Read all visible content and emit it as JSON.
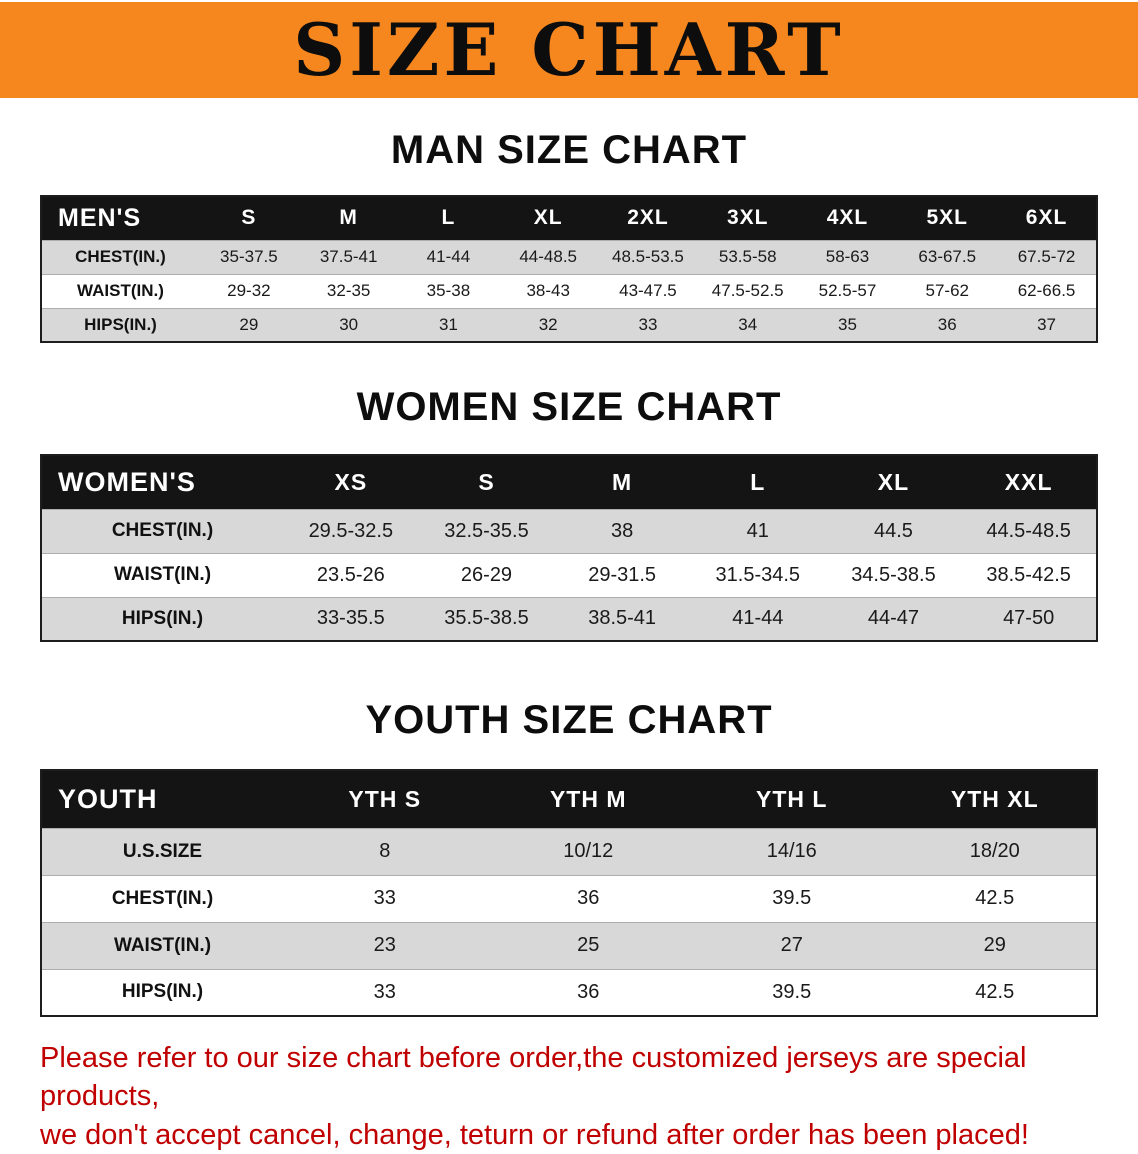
{
  "banner": {
    "title": "SIZE CHART"
  },
  "headings": {
    "men": "MAN SIZE CHART",
    "women": "WOMEN SIZE CHART",
    "youth": "YOUTH SIZE CHART"
  },
  "tables": {
    "men": {
      "label": "MEN'S",
      "columns": [
        "S",
        "M",
        "L",
        "XL",
        "2XL",
        "3XL",
        "4XL",
        "5XL",
        "6XL"
      ],
      "rows": [
        {
          "label": "CHEST(IN.)",
          "values": [
            "35-37.5",
            "37.5-41",
            "41-44",
            "44-48.5",
            "48.5-53.5",
            "53.5-58",
            "58-63",
            "63-67.5",
            "67.5-72"
          ]
        },
        {
          "label": "WAIST(IN.)",
          "values": [
            "29-32",
            "32-35",
            "35-38",
            "38-43",
            "43-47.5",
            "47.5-52.5",
            "52.5-57",
            "57-62",
            "62-66.5"
          ]
        },
        {
          "label": "HIPS(IN.)",
          "values": [
            "29",
            "30",
            "31",
            "32",
            "33",
            "34",
            "35",
            "36",
            "37"
          ]
        }
      ]
    },
    "women": {
      "label": "WOMEN'S",
      "columns": [
        "XS",
        "S",
        "M",
        "L",
        "XL",
        "XXL"
      ],
      "rows": [
        {
          "label": "CHEST(IN.)",
          "values": [
            "29.5-32.5",
            "32.5-35.5",
            "38",
            "41",
            "44.5",
            "44.5-48.5"
          ]
        },
        {
          "label": "WAIST(IN.)",
          "values": [
            "23.5-26",
            "26-29",
            "29-31.5",
            "31.5-34.5",
            "34.5-38.5",
            "38.5-42.5"
          ]
        },
        {
          "label": "HIPS(IN.)",
          "values": [
            "33-35.5",
            "35.5-38.5",
            "38.5-41",
            "41-44",
            "44-47",
            "47-50"
          ]
        }
      ]
    },
    "youth": {
      "label": "YOUTH",
      "columns": [
        "YTH S",
        "YTH M",
        "YTH L",
        "YTH XL"
      ],
      "rows": [
        {
          "label": "U.S.SIZE",
          "values": [
            "8",
            "10/12",
            "14/16",
            "18/20"
          ]
        },
        {
          "label": "CHEST(IN.)",
          "values": [
            "33",
            "36",
            "39.5",
            "42.5"
          ]
        },
        {
          "label": "WAIST(IN.)",
          "values": [
            "23",
            "25",
            "27",
            "29"
          ]
        },
        {
          "label": "HIPS(IN.)",
          "values": [
            "33",
            "36",
            "39.5",
            "42.5"
          ]
        }
      ]
    }
  },
  "disclaimer": {
    "line1": "Please refer to our size chart before order,the customized jerseys are special products,",
    "line2": "we don't accept cancel, change, teturn or refund after order has been placed!"
  },
  "colors": {
    "banner_bg": "#F6861E",
    "header_bg": "#141414",
    "row_alt_bg": "#D8D8D8",
    "disclaimer_color": "#C00000"
  }
}
